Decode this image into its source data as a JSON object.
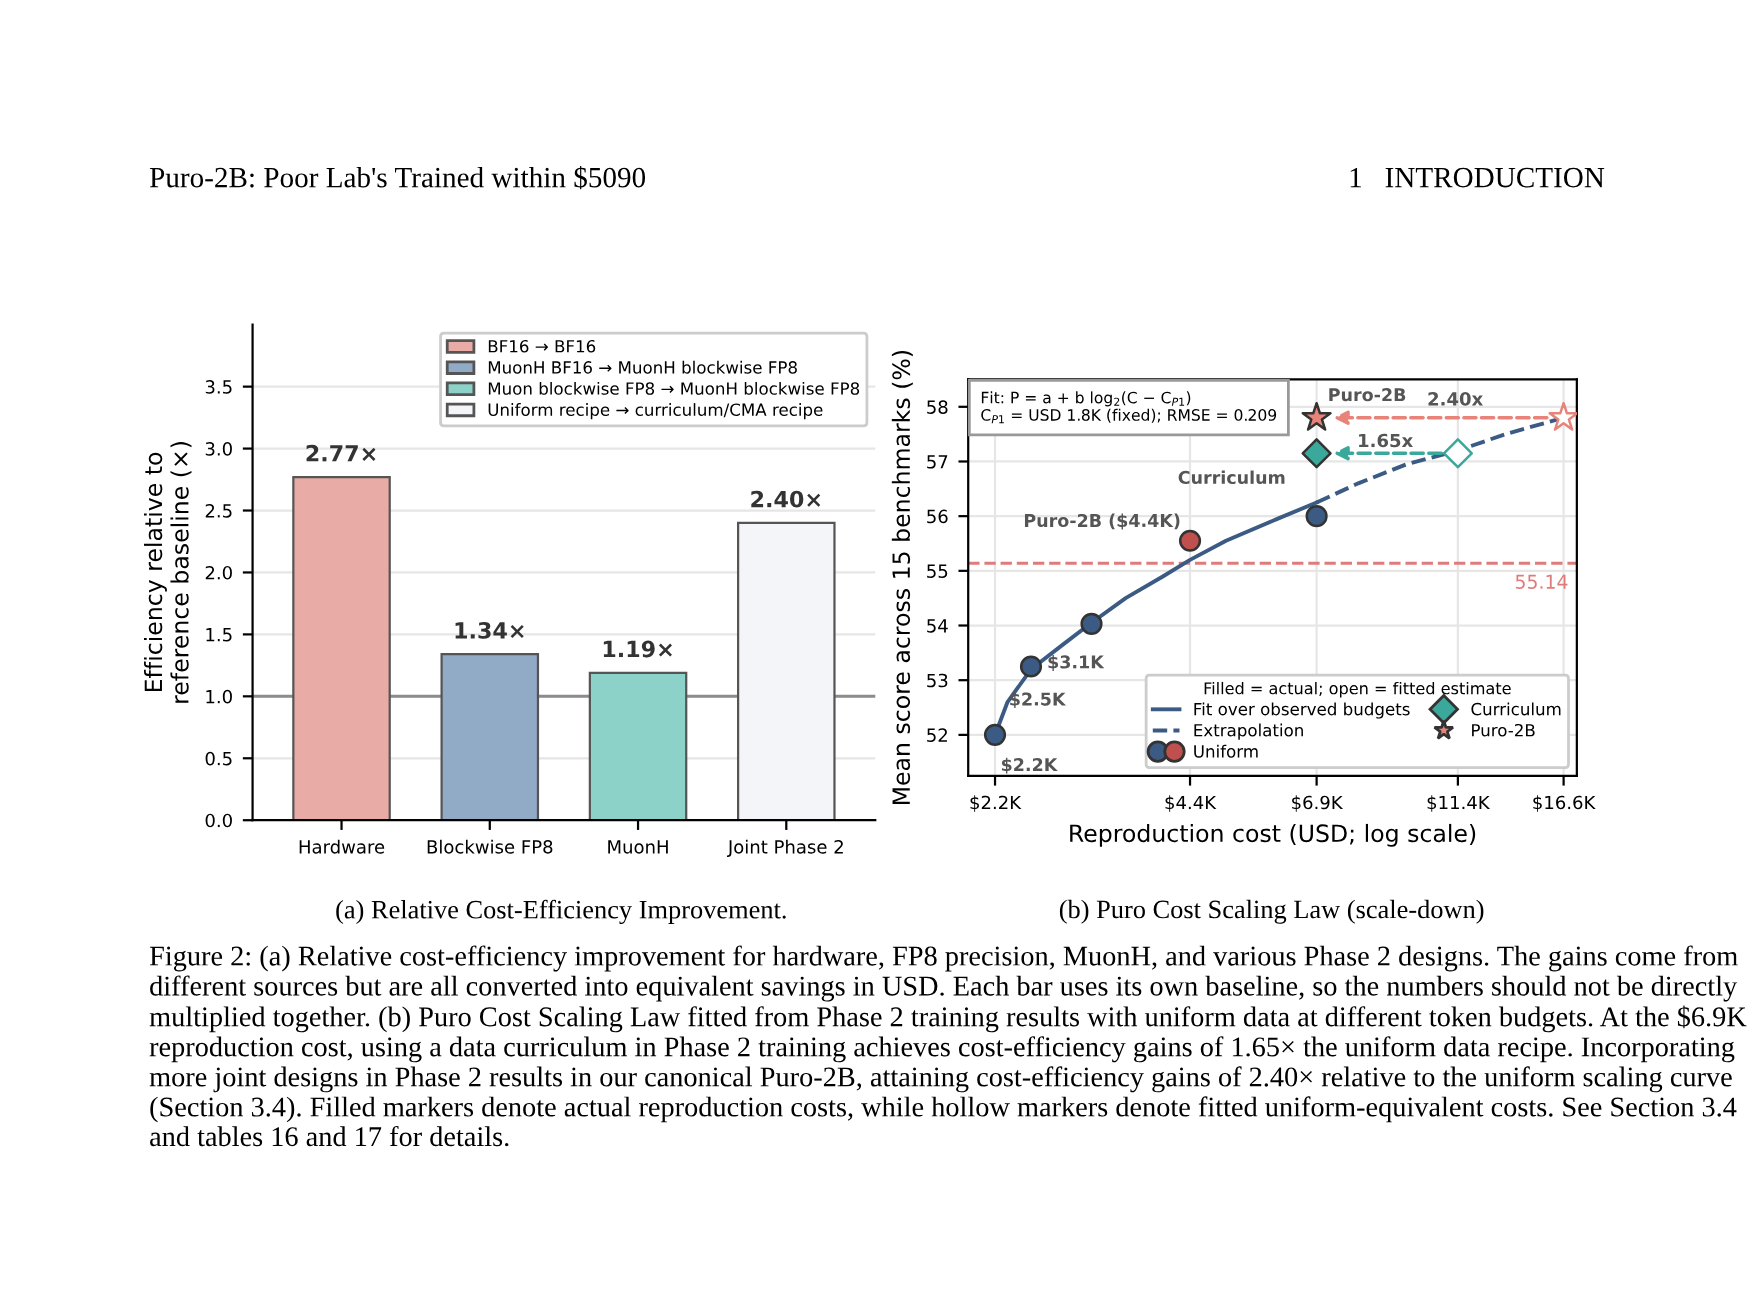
{
  "chart_data": [
    {
      "type": "bar",
      "ylabel": "Efficiency relative to\nreference baseline (×)",
      "categories": [
        "Hardware",
        "Blockwise FP8",
        "MuonH",
        "Joint Phase 2"
      ],
      "series": [
        {
          "name": "BF16 → BF16",
          "color": "#e8aba5",
          "values": [
            2.77,
            null,
            null,
            null
          ],
          "value_labels": [
            "2.77×",
            null,
            null,
            null
          ]
        },
        {
          "name": "MuonH BF16 → MuonH blockwise FP8",
          "color": "#91aac6",
          "values": [
            null,
            1.34,
            null,
            null
          ],
          "value_labels": [
            null,
            "1.34×",
            null,
            null
          ]
        },
        {
          "name": "Muon blockwise FP8 → MuonH blockwise FP8",
          "color": "#8dd2c9",
          "values": [
            null,
            null,
            1.19,
            null
          ],
          "value_labels": [
            null,
            null,
            "1.19×",
            null
          ]
        },
        {
          "name": "Uniform recipe → curriculum/CMA recipe",
          "color": "#f3f5f8",
          "values": [
            null,
            null,
            null,
            2.4
          ],
          "value_labels": [
            null,
            null,
            null,
            "2.40×"
          ]
        }
      ],
      "ylim": [
        0,
        4.0
      ],
      "yticks": [
        {
          "value": 0,
          "label": "0.0"
        },
        0.5,
        {
          "value": 1,
          "label": "1.0"
        },
        1.5,
        {
          "value": 2,
          "label": "2.0"
        },
        2.5,
        {
          "value": 3,
          "label": "3.0"
        },
        3.5
      ],
      "ref_lines": [
        {
          "axis": "y",
          "value": 1.0,
          "label": null,
          "color": "#8c8c8c"
        }
      ],
      "grid": "y",
      "legend": "top right",
      "annotations": [
        "Puro-2B: Poor Lab's Trained within $5090",
        "1   INTRODUCTION",
        "(a) Relative Cost-Efficiency Improvement."
      ]
    },
    {
      "type": "line",
      "xlabel": "Reproduction cost (USD; log scale)",
      "ylabel": "Mean score across 15 benchmarks (%)",
      "log": "x",
      "xlim": [
        2.0,
        17.4
      ],
      "xticks": [
        {
          "value": 2.2,
          "label": "$2.2K"
        },
        {
          "value": 4.4,
          "label": "$4.4K"
        },
        {
          "value": 6.9,
          "label": "$6.9K"
        },
        {
          "value": 11.4,
          "label": "$11.4K"
        },
        {
          "value": 16.6,
          "label": "$16.6K"
        }
      ],
      "ylim": [
        51.25,
        58.5
      ],
      "yticks": [
        52,
        53,
        54,
        55,
        56,
        57,
        58
      ],
      "series": [
        {
          "name": "Fit over observed budgets",
          "type": "line",
          "line_style": "solid",
          "color": "#3b5b84",
          "x": [
            2.2,
            2.3,
            2.5,
            2.8,
            3.1,
            3.5,
            4.0,
            4.4,
            5.0,
            6.0,
            6.9
          ],
          "values": [
            52.0,
            52.6,
            53.2,
            53.65,
            54.05,
            54.5,
            54.9,
            55.2,
            55.55,
            55.95,
            56.25
          ]
        },
        {
          "name": "Extrapolation",
          "type": "line",
          "line_style": "dashed",
          "color": "#3b5b84",
          "x": [
            6.9,
            8.0,
            9.5,
            11.4,
            13.5,
            16.6
          ],
          "values": [
            56.25,
            56.6,
            56.95,
            57.2,
            57.5,
            57.8
          ]
        },
        {
          "name": "Uniform",
          "type": "scatter",
          "marker": "circle",
          "color": "#3b5b84",
          "colors": [
            "#3b5b84",
            "#3b5b84",
            "#3b5b84",
            "#c0504d",
            "#3b5b84"
          ],
          "x": [
            2.2,
            2.5,
            3.1,
            4.4,
            6.9
          ],
          "values": [
            52.0,
            53.25,
            54.03,
            55.55,
            56.0
          ]
        },
        {
          "name": "Curriculum",
          "type": "scatter",
          "marker": "diamond",
          "color": "#3aa89a",
          "x": [
            6.9
          ],
          "values": [
            57.15
          ]
        },
        {
          "type": "scatter",
          "marker": "diamond",
          "color": "#3aa89a",
          "colors": [
            "#ffffff"
          ],
          "x": [
            11.4
          ],
          "values": [
            57.15
          ]
        },
        {
          "name": "Puro-2B",
          "type": "scatter",
          "marker": "star",
          "color": "#e8837a",
          "x": [
            6.9
          ],
          "values": [
            57.8
          ]
        },
        {
          "type": "scatter",
          "marker": "star",
          "color": "#e8837a",
          "colors": [
            "#ffffff"
          ],
          "x": [
            16.6
          ],
          "values": [
            57.8
          ]
        }
      ],
      "ref_lines": [
        {
          "axis": "y",
          "value": 55.14,
          "label": "55.14",
          "color": "#e07b7b",
          "line_style": "dashed"
        }
      ],
      "grid": true,
      "legend": "bottom right",
      "legend_title": "Filled = actual; open = fitted estimate",
      "annotations": [
        "Fit: P = a + b log$_{2}$(C − C$_{P1}$)\nC$_{P1}$ = USD 1.8K (fixed); RMSE = 0.209",
        "(b) Puro Cost Scaling Law (scale-down)",
        "Figure 2: (a) Relative cost-efficiency improvement for hardware, FP8 precision, MuonH, and various Phase 2 designs. The gains come from different sources but are all converted into equivalent savings in USD. Each bar uses its own baseline, so the numbers should not be directly multiplied together. (b) Puro Cost Scaling Law fitted from Phase 2 training results with uniform data at different token budgets. At the $6.9K reproduction cost, using a data curriculum in Phase 2 training achieves cost-efficiency gains of 1.65× the uniform data recipe. Incorporating more joint designs in Phase 2 results in our canonical Puro-2B, attaining cost-efficiency gains of 2.40× relative to the uniform scaling curve (Section 3.4). Filled markers denote actual reproduction costs, while hollow markers denote fitted uniform-equivalent costs. See Section 3.4 and tables 16 and 17 for details.",
        "1.65x",
        "2.40x",
        {
          "text": "$2.2K",
          "x": 2.2,
          "y": 52.0
        },
        {
          "text": "$2.5K",
          "x": 2.5,
          "y": 53.25
        },
        {
          "text": "$3.1K",
          "x": 3.1,
          "y": 54.03
        },
        {
          "text": "Puro-2B ($4.4K)",
          "x": 4.4,
          "y": 55.55
        },
        {
          "text": "Curriculum",
          "x": 6.9,
          "y": 57.15
        },
        {
          "text": "Puro-2B",
          "x": 6.9,
          "y": 57.8
        }
      ]
    }
  ]
}
